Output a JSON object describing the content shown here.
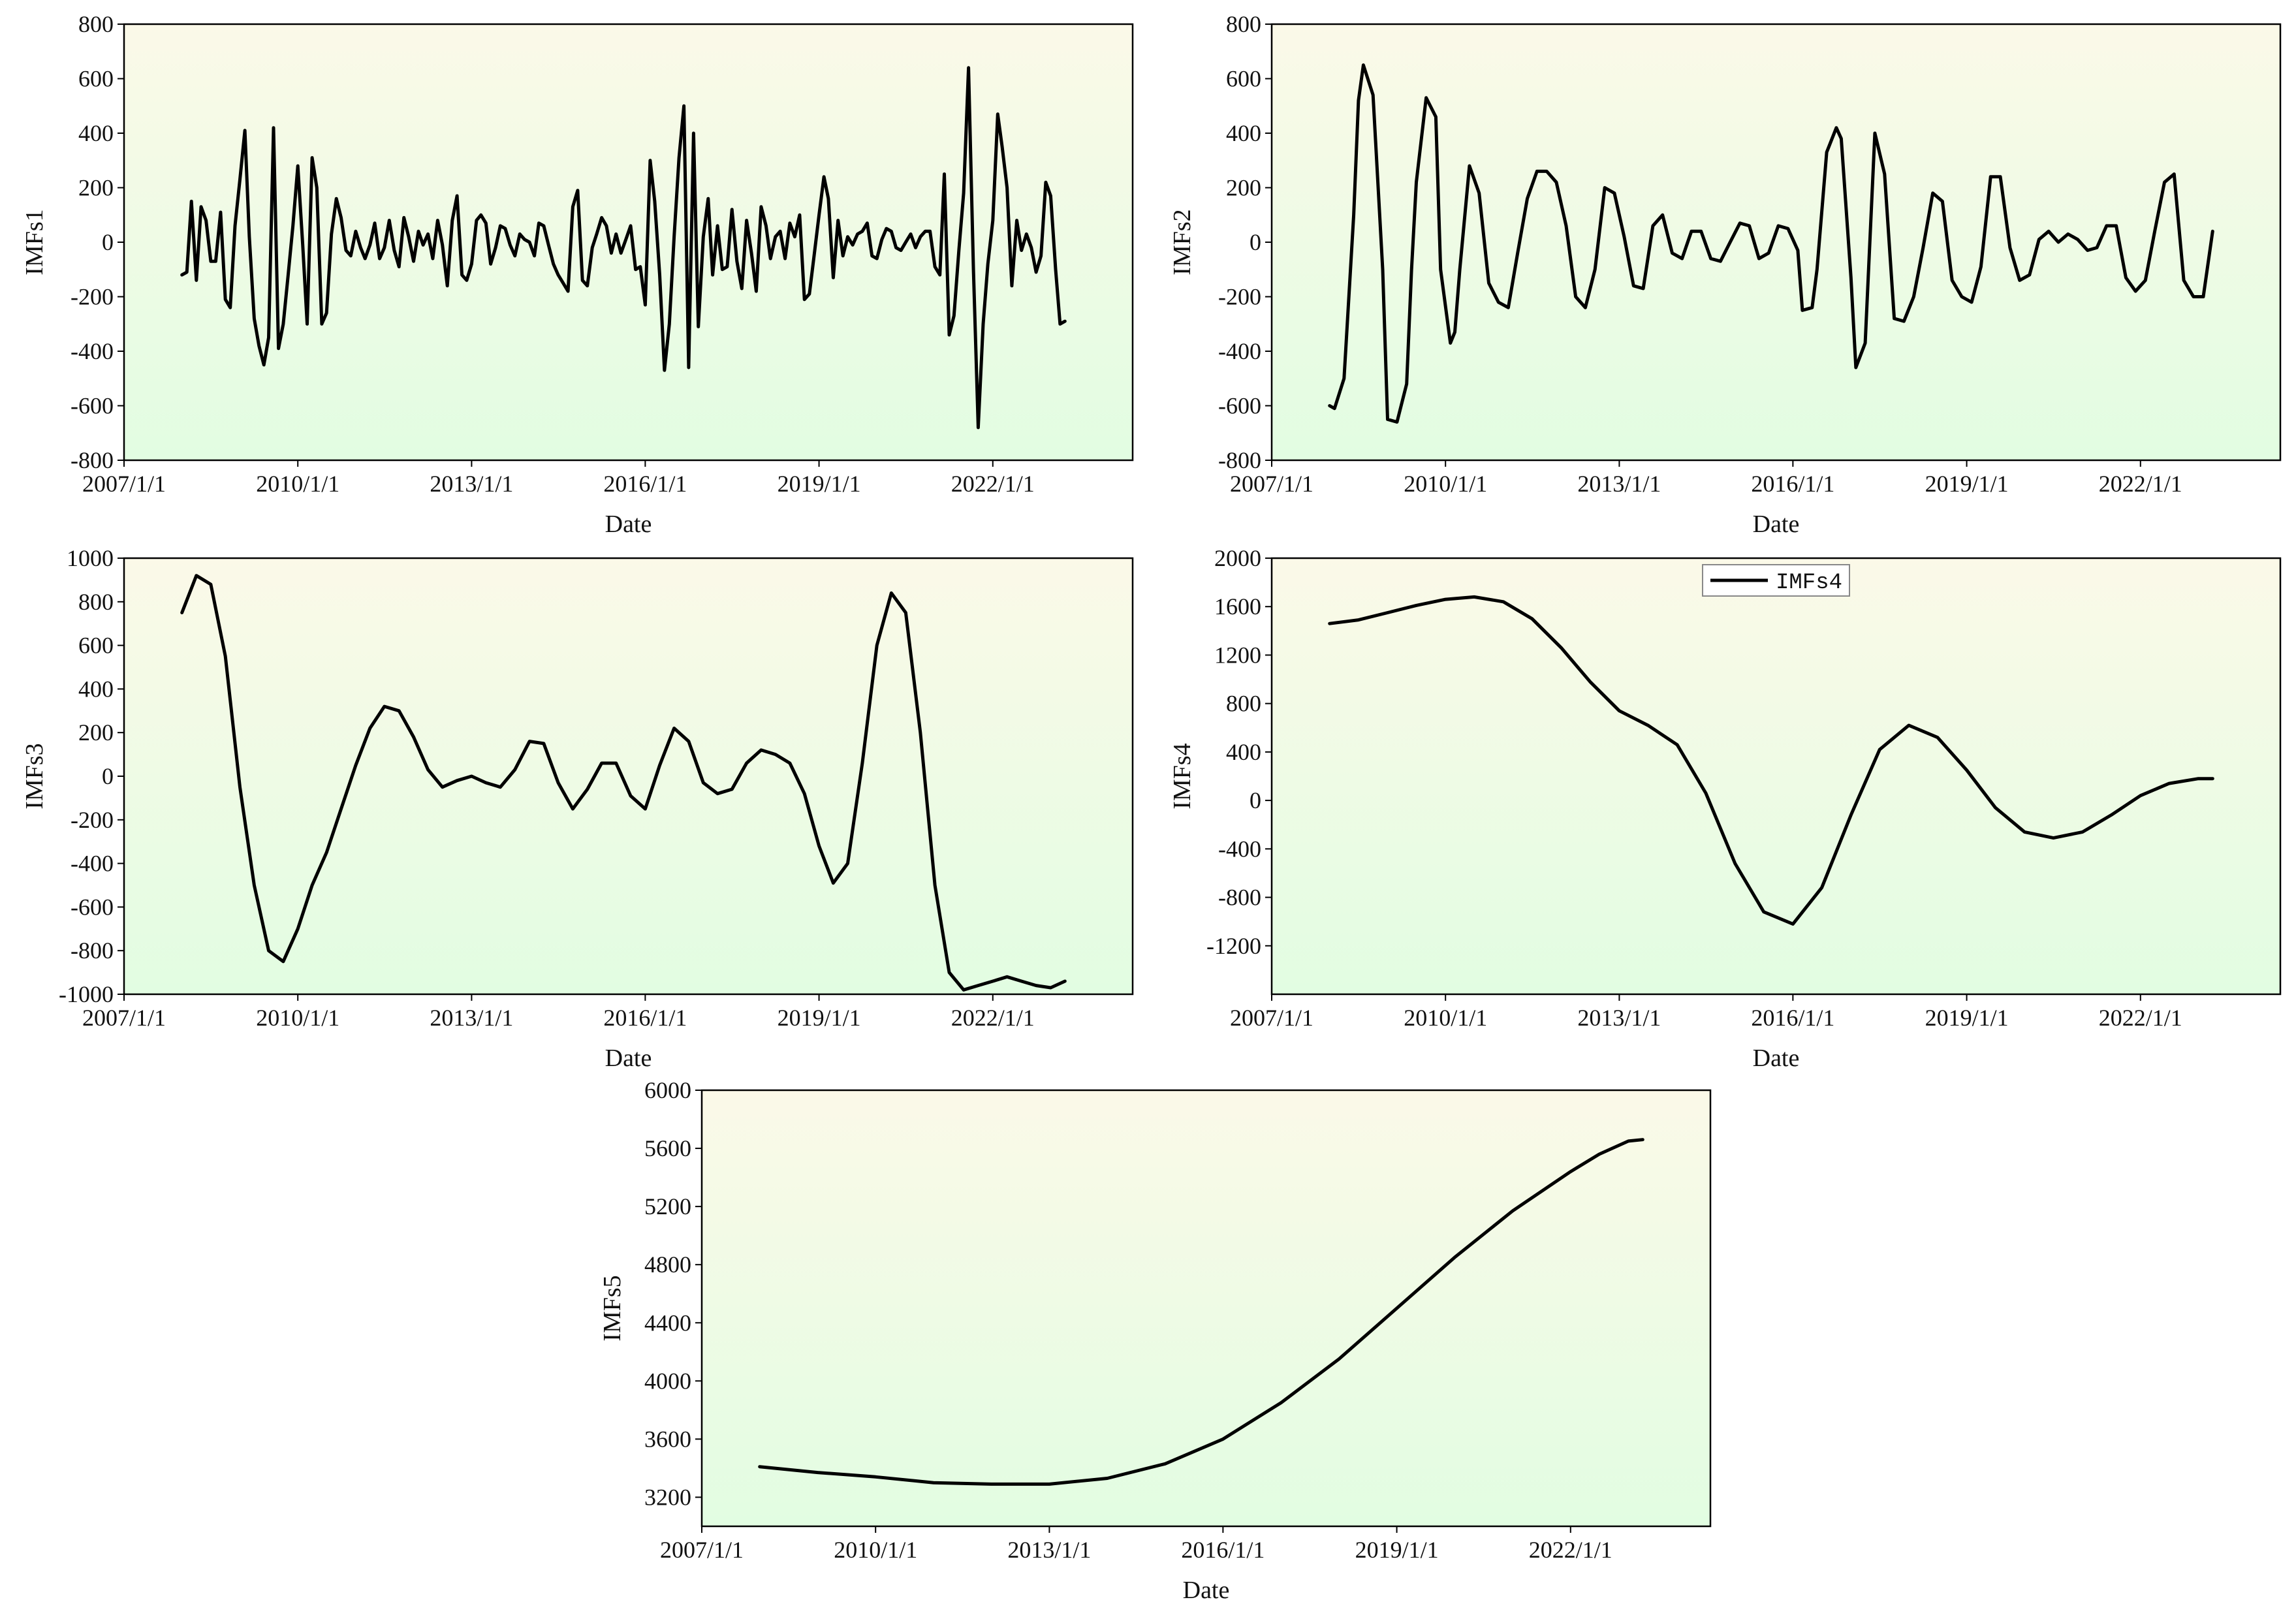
{
  "style": {
    "line_color": "#000000",
    "bg_top": "#fbf9e8",
    "bg_bottom": "#e2fde2"
  },
  "chart_data": [
    {
      "type": "line",
      "xlabel": "Date",
      "ylabel": "IMFs1",
      "xlim": [
        "2007/1/1",
        "2024/6/1"
      ],
      "ylim": [
        -800,
        800
      ],
      "xticks": [
        "2007/1/1",
        "2010/1/1",
        "2013/1/1",
        "2016/1/1",
        "2019/1/1",
        "2022/1/1"
      ],
      "yticks": [
        800,
        600,
        400,
        200,
        0,
        -200,
        -400,
        -600,
        -800
      ],
      "grid": false,
      "legend": null,
      "series": [
        {
          "x": [
            "2008/1/1",
            "2008/2/1",
            "2008/3/1",
            "2008/4/1",
            "2008/5/1",
            "2008/6/1",
            "2008/7/1",
            "2008/8/1",
            "2008/9/1",
            "2008/10/1",
            "2008/11/1",
            "2008/12/1",
            "2009/1/1",
            "2009/2/1",
            "2009/3/1",
            "2009/4/1",
            "2009/5/1",
            "2009/6/1",
            "2009/7/1",
            "2009/8/1",
            "2009/9/1",
            "2009/10/1",
            "2009/11/1",
            "2009/12/1",
            "2010/1/1",
            "2010/2/1",
            "2010/3/1",
            "2010/4/1",
            "2010/5/1",
            "2010/6/1",
            "2010/7/1",
            "2010/8/1",
            "2010/9/1",
            "2010/10/1",
            "2010/11/1",
            "2010/12/1",
            "2011/1/1",
            "2011/2/1",
            "2011/3/1",
            "2011/4/1",
            "2011/5/1",
            "2011/6/1",
            "2011/7/1",
            "2011/8/1",
            "2011/9/1",
            "2011/10/1",
            "2011/11/1",
            "2011/12/1",
            "2012/1/1",
            "2012/2/1",
            "2012/3/1",
            "2012/4/1",
            "2012/5/1",
            "2012/6/1",
            "2012/7/1",
            "2012/8/1",
            "2012/9/1",
            "2012/10/1",
            "2012/11/1",
            "2012/12/1",
            "2013/1/1",
            "2013/2/1",
            "2013/3/1",
            "2013/4/1",
            "2013/5/1",
            "2013/6/1",
            "2013/7/1",
            "2013/8/1",
            "2013/9/1",
            "2013/10/1",
            "2013/11/1",
            "2013/12/1",
            "2014/1/1",
            "2014/2/1",
            "2014/3/1",
            "2014/4/1",
            "2014/5/1",
            "2014/6/1",
            "2014/7/1",
            "2014/8/1",
            "2014/9/1",
            "2014/10/1",
            "2014/11/1",
            "2014/12/1",
            "2015/1/1",
            "2015/2/1",
            "2015/3/1",
            "2015/4/1",
            "2015/5/1",
            "2015/6/1",
            "2015/7/1",
            "2015/8/1",
            "2015/9/1",
            "2015/10/1",
            "2015/11/1",
            "2015/12/1",
            "2016/1/1",
            "2016/2/1",
            "2016/3/1",
            "2016/4/1",
            "2016/5/1",
            "2016/6/1",
            "2016/7/1",
            "2016/8/1",
            "2016/9/1",
            "2016/10/1",
            "2016/11/1",
            "2016/12/1",
            "2017/1/1",
            "2017/2/1",
            "2017/3/1",
            "2017/4/1",
            "2017/5/1",
            "2017/6/1",
            "2017/7/1",
            "2017/8/1",
            "2017/9/1",
            "2017/10/1",
            "2017/11/1",
            "2017/12/1",
            "2018/1/1",
            "2018/2/1",
            "2018/3/1",
            "2018/4/1",
            "2018/5/1",
            "2018/6/1",
            "2018/7/1",
            "2018/8/1",
            "2018/9/1",
            "2018/10/1",
            "2018/11/1",
            "2018/12/1",
            "2019/1/1",
            "2019/2/1",
            "2019/3/1",
            "2019/4/1",
            "2019/5/1",
            "2019/6/1",
            "2019/7/1",
            "2019/8/1",
            "2019/9/1",
            "2019/10/1",
            "2019/11/1",
            "2019/12/1",
            "2020/1/1",
            "2020/2/1",
            "2020/3/1",
            "2020/4/1",
            "2020/5/1",
            "2020/6/1",
            "2020/7/1",
            "2020/8/1",
            "2020/9/1",
            "2020/10/1",
            "2020/11/1",
            "2020/12/1",
            "2021/1/1",
            "2021/2/1",
            "2021/3/1",
            "2021/4/1",
            "2021/5/1",
            "2021/6/1",
            "2021/7/1",
            "2021/8/1",
            "2021/9/1",
            "2021/10/1",
            "2021/11/1",
            "2021/12/1",
            "2022/1/1",
            "2022/2/1",
            "2022/3/1",
            "2022/4/1",
            "2022/5/1",
            "2022/6/1",
            "2022/7/1",
            "2022/8/1",
            "2022/9/1",
            "2022/10/1",
            "2022/11/1",
            "2022/12/1",
            "2023/1/1",
            "2023/2/1",
            "2023/3/1",
            "2023/4/1"
          ],
          "y": [
            -120,
            -110,
            150,
            -140,
            130,
            80,
            -70,
            -70,
            110,
            -210,
            -240,
            60,
            230,
            410,
            20,
            -280,
            -380,
            -450,
            -350,
            420,
            -390,
            -300,
            -120,
            60,
            280,
            -10,
            -300,
            310,
            200,
            -300,
            -260,
            30,
            160,
            90,
            -30,
            -50,
            40,
            -20,
            -60,
            -10,
            70,
            -60,
            -20,
            80,
            -30,
            -90,
            90,
            20,
            -70,
            40,
            -10,
            30,
            -60,
            80,
            -10,
            -160,
            80,
            170,
            -120,
            -140,
            -80,
            80,
            100,
            70,
            -80,
            -20,
            60,
            50,
            -10,
            -50,
            30,
            10,
            0,
            -50,
            70,
            60,
            -10,
            -80,
            -120,
            -150,
            -180,
            130,
            190,
            -140,
            -160,
            -20,
            30,
            90,
            60,
            -40,
            30,
            -40,
            10,
            60,
            -100,
            -90,
            -230,
            300,
            150,
            -120,
            -470,
            -300,
            20,
            310,
            500,
            -460,
            400,
            -310,
            20,
            160,
            -120,
            60,
            -100,
            -90,
            120,
            -70,
            -170,
            80,
            -40,
            -180,
            130,
            60,
            -60,
            20,
            40,
            -60,
            70,
            20,
            100,
            -210,
            -190,
            -50,
            100,
            240,
            160,
            -130,
            80,
            -50,
            20,
            -10,
            30,
            40,
            70,
            -50,
            -60,
            10,
            50,
            40,
            -20,
            -30,
            0,
            30,
            -20,
            20,
            40,
            40,
            -90,
            -120,
            250,
            -340,
            -270,
            -30,
            180,
            640,
            -100,
            -680,
            -300,
            -80,
            80,
            470,
            350,
            200,
            -160,
            80,
            -30,
            30,
            -20,
            -110,
            -50,
            220,
            170,
            -100,
            -300,
            -290
          ]
        }
      ]
    },
    {
      "type": "line",
      "xlabel": "Date",
      "ylabel": "IMFs2",
      "xlim": [
        "2007/1/1",
        "2024/6/1"
      ],
      "ylim": [
        -800,
        800
      ],
      "xticks": [
        "2007/1/1",
        "2010/1/1",
        "2013/1/1",
        "2016/1/1",
        "2019/1/1",
        "2022/1/1"
      ],
      "yticks": [
        800,
        600,
        400,
        200,
        0,
        -200,
        -400,
        -600,
        -800
      ],
      "grid": false,
      "legend": null,
      "series": [
        {
          "x": [
            "2008/1/1",
            "2008/2/1",
            "2008/4/1",
            "2008/6/1",
            "2008/7/1",
            "2008/8/1",
            "2008/10/1",
            "2008/12/1",
            "2009/1/1",
            "2009/3/1",
            "2009/5/1",
            "2009/6/1",
            "2009/7/1",
            "2009/9/1",
            "2009/11/1",
            "2009/12/1",
            "2010/2/1",
            "2010/3/1",
            "2010/4/1",
            "2010/6/1",
            "2010/8/1",
            "2010/10/1",
            "2010/12/1",
            "2011/2/1",
            "2011/4/1",
            "2011/6/1",
            "2011/8/1",
            "2011/10/1",
            "2011/12/1",
            "2012/2/1",
            "2012/4/1",
            "2012/6/1",
            "2012/8/1",
            "2012/10/1",
            "2012/12/1",
            "2013/2/1",
            "2013/4/1",
            "2013/6/1",
            "2013/8/1",
            "2013/10/1",
            "2013/12/1",
            "2014/2/1",
            "2014/4/1",
            "2014/6/1",
            "2014/8/1",
            "2014/10/1",
            "2014/12/1",
            "2015/2/1",
            "2015/4/1",
            "2015/6/1",
            "2015/8/1",
            "2015/10/1",
            "2015/12/1",
            "2016/2/1",
            "2016/3/1",
            "2016/5/1",
            "2016/6/1",
            "2016/8/1",
            "2016/10/1",
            "2016/11/1",
            "2017/1/1",
            "2017/2/1",
            "2017/4/1",
            "2017/6/1",
            "2017/8/1",
            "2017/10/1",
            "2017/12/1",
            "2018/2/1",
            "2018/4/1",
            "2018/6/1",
            "2018/8/1",
            "2018/10/1",
            "2018/12/1",
            "2019/2/1",
            "2019/4/1",
            "2019/6/1",
            "2019/8/1",
            "2019/10/1",
            "2019/12/1",
            "2020/2/1",
            "2020/4/1",
            "2020/6/1",
            "2020/8/1",
            "2020/10/1",
            "2020/12/1",
            "2021/2/1",
            "2021/4/1",
            "2021/6/1",
            "2021/8/1",
            "2021/10/1",
            "2021/12/1",
            "2022/2/1",
            "2022/4/1",
            "2022/6/1",
            "2022/8/1",
            "2022/10/1",
            "2022/12/1",
            "2023/2/1",
            "2023/4/1"
          ],
          "y": [
            -600,
            -610,
            -500,
            100,
            520,
            650,
            540,
            -100,
            -650,
            -660,
            -520,
            -100,
            220,
            530,
            460,
            -100,
            -370,
            -330,
            -100,
            280,
            180,
            -150,
            -220,
            -240,
            -40,
            160,
            260,
            260,
            220,
            60,
            -200,
            -240,
            -100,
            200,
            180,
            20,
            -160,
            -170,
            60,
            100,
            -40,
            -60,
            40,
            40,
            -60,
            -70,
            0,
            70,
            60,
            -60,
            -40,
            60,
            50,
            -30,
            -250,
            -240,
            -100,
            330,
            420,
            380,
            -130,
            -460,
            -370,
            400,
            250,
            -280,
            -290,
            -200,
            -20,
            180,
            150,
            -140,
            -200,
            -220,
            -90,
            240,
            240,
            -20,
            -140,
            -120,
            10,
            40,
            0,
            30,
            10,
            -30,
            -20,
            60,
            60,
            -130,
            -180,
            -140,
            40,
            220,
            250,
            -140,
            -200,
            -200,
            40
          ]
        }
      ]
    },
    {
      "type": "line",
      "xlabel": "Date",
      "ylabel": "IMFs3",
      "xlim": [
        "2007/1/1",
        "2024/6/1"
      ],
      "ylim": [
        -1000,
        1000
      ],
      "xticks": [
        "2007/1/1",
        "2010/1/1",
        "2013/1/1",
        "2016/1/1",
        "2019/1/1",
        "2022/1/1"
      ],
      "yticks": [
        1000,
        800,
        600,
        400,
        200,
        0,
        -200,
        -400,
        -600,
        -800,
        -1000
      ],
      "grid": false,
      "legend": null,
      "series": [
        {
          "x": [
            "2008/1/1",
            "2008/4/1",
            "2008/7/1",
            "2008/10/1",
            "2009/1/1",
            "2009/4/1",
            "2009/7/1",
            "2009/10/1",
            "2010/1/1",
            "2010/4/1",
            "2010/7/1",
            "2010/10/1",
            "2011/1/1",
            "2011/4/1",
            "2011/7/1",
            "2011/10/1",
            "2012/1/1",
            "2012/4/1",
            "2012/7/1",
            "2012/10/1",
            "2013/1/1",
            "2013/4/1",
            "2013/7/1",
            "2013/10/1",
            "2014/1/1",
            "2014/4/1",
            "2014/7/1",
            "2014/10/1",
            "2015/1/1",
            "2015/4/1",
            "2015/7/1",
            "2015/10/1",
            "2016/1/1",
            "2016/4/1",
            "2016/7/1",
            "2016/10/1",
            "2017/1/1",
            "2017/4/1",
            "2017/7/1",
            "2017/10/1",
            "2018/1/1",
            "2018/4/1",
            "2018/7/1",
            "2018/10/1",
            "2019/1/1",
            "2019/4/1",
            "2019/7/1",
            "2019/10/1",
            "2020/1/1",
            "2020/4/1",
            "2020/7/1",
            "2020/10/1",
            "2021/1/1",
            "2021/4/1",
            "2021/7/1",
            "2021/10/1",
            "2022/1/1",
            "2022/4/1",
            "2022/7/1",
            "2022/10/1",
            "2023/1/1",
            "2023/4/1"
          ],
          "y": [
            750,
            920,
            880,
            550,
            -50,
            -500,
            -800,
            -850,
            -700,
            -500,
            -350,
            -150,
            50,
            220,
            320,
            300,
            180,
            30,
            -50,
            -20,
            0,
            -30,
            -50,
            30,
            160,
            150,
            -30,
            -150,
            -60,
            60,
            60,
            -90,
            -150,
            50,
            220,
            160,
            -30,
            -80,
            -60,
            60,
            120,
            100,
            60,
            -80,
            -320,
            -490,
            -400,
            60,
            600,
            840,
            750,
            200,
            -500,
            -900,
            -980,
            -960,
            -940,
            -920,
            -940,
            -960,
            -970,
            -940
          ]
        }
      ]
    },
    {
      "type": "line",
      "xlabel": "Date",
      "ylabel": "IMFs4",
      "xlim": [
        "2007/1/1",
        "2024/6/1"
      ],
      "ylim": [
        -1600,
        2000
      ],
      "xticks": [
        "2007/1/1",
        "2010/1/1",
        "2013/1/1",
        "2016/1/1",
        "2019/1/1",
        "2022/1/1"
      ],
      "yticks": [
        2000,
        1600,
        1200,
        800,
        400,
        0,
        -400,
        -800,
        -1200
      ],
      "grid": false,
      "legend": "top-center",
      "series": [
        {
          "name": "IMFs4",
          "x": [
            "2008/1/1",
            "2008/7/1",
            "2009/1/1",
            "2009/7/1",
            "2010/1/1",
            "2010/7/1",
            "2011/1/1",
            "2011/7/1",
            "2012/1/1",
            "2012/7/1",
            "2013/1/1",
            "2013/7/1",
            "2014/1/1",
            "2014/7/1",
            "2015/1/1",
            "2015/7/1",
            "2016/1/1",
            "2016/7/1",
            "2017/1/1",
            "2017/7/1",
            "2018/1/1",
            "2018/7/1",
            "2019/1/1",
            "2019/7/1",
            "2020/1/1",
            "2020/7/1",
            "2021/1/1",
            "2021/7/1",
            "2022/1/1",
            "2022/7/1",
            "2023/1/1",
            "2023/4/1"
          ],
          "y": [
            1460,
            1490,
            1550,
            1610,
            1660,
            1680,
            1640,
            1500,
            1260,
            980,
            740,
            620,
            460,
            60,
            -520,
            -920,
            -1020,
            -720,
            -120,
            420,
            620,
            520,
            250,
            -60,
            -260,
            -310,
            -260,
            -120,
            40,
            140,
            180,
            180
          ]
        }
      ]
    },
    {
      "type": "line",
      "xlabel": "Date",
      "ylabel": "IMFs5",
      "xlim": [
        "2007/1/1",
        "2024/6/1"
      ],
      "ylim": [
        3000,
        6000
      ],
      "xticks": [
        "2007/1/1",
        "2010/1/1",
        "2013/1/1",
        "2016/1/1",
        "2019/1/1",
        "2022/1/1"
      ],
      "yticks": [
        6000,
        5600,
        5200,
        4800,
        4400,
        4000,
        3600,
        3200
      ],
      "grid": false,
      "legend": null,
      "series": [
        {
          "x": [
            "2008/1/1",
            "2009/1/1",
            "2010/1/1",
            "2011/1/1",
            "2012/1/1",
            "2013/1/1",
            "2014/1/1",
            "2015/1/1",
            "2016/1/1",
            "2017/1/1",
            "2018/1/1",
            "2019/1/1",
            "2020/1/1",
            "2021/1/1",
            "2022/1/1",
            "2022/7/1",
            "2023/1/1",
            "2023/4/1"
          ],
          "y": [
            3410,
            3370,
            3340,
            3300,
            3290,
            3290,
            3330,
            3430,
            3600,
            3850,
            4150,
            4500,
            4850,
            5170,
            5440,
            5560,
            5650,
            5660
          ]
        }
      ]
    }
  ]
}
